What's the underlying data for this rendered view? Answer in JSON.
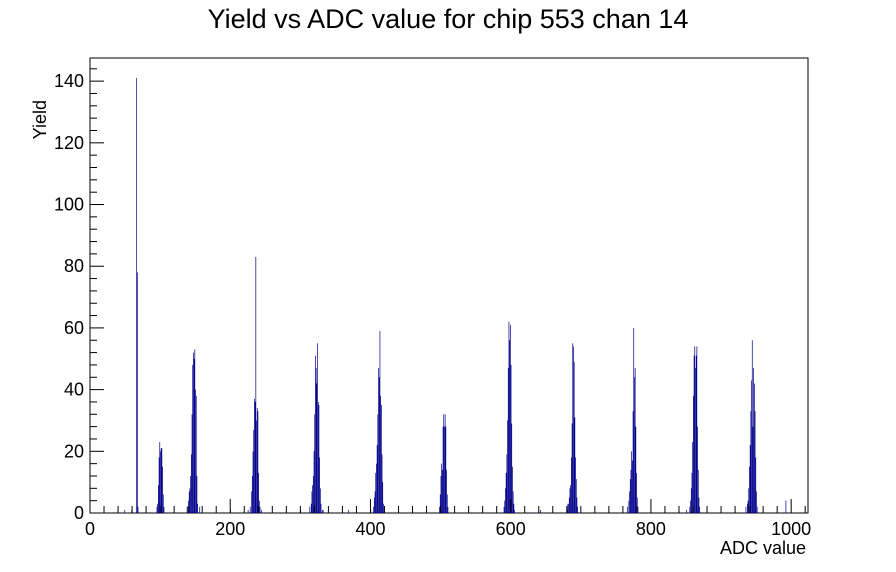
{
  "chart_data": {
    "type": "histogram",
    "title": "Yield vs ADC value for chip 553 chan 14",
    "xlabel": "ADC value",
    "ylabel": "Yield",
    "xlim": [
      0,
      1024
    ],
    "ylim": [
      0,
      147.5
    ],
    "x_ticks": [
      0,
      200,
      400,
      600,
      800,
      1000
    ],
    "y_ticks": [
      0,
      20,
      40,
      60,
      80,
      100,
      120,
      140
    ],
    "grid": false,
    "legend": "none",
    "line_color": "#00008b",
    "bin_width": 1,
    "bins": [
      [
        49,
        1
      ],
      [
        59,
        1
      ],
      [
        66,
        141
      ],
      [
        67,
        78
      ],
      [
        68,
        2
      ],
      [
        95,
        2
      ],
      [
        96,
        3
      ],
      [
        97,
        9
      ],
      [
        98,
        18
      ],
      [
        99,
        23
      ],
      [
        100,
        20
      ],
      [
        101,
        21
      ],
      [
        102,
        21
      ],
      [
        103,
        15
      ],
      [
        104,
        6
      ],
      [
        105,
        2
      ],
      [
        138,
        2
      ],
      [
        140,
        4
      ],
      [
        141,
        7
      ],
      [
        142,
        8
      ],
      [
        143,
        12
      ],
      [
        144,
        19
      ],
      [
        145,
        32
      ],
      [
        146,
        48
      ],
      [
        147,
        52
      ],
      [
        148,
        50
      ],
      [
        149,
        53
      ],
      [
        150,
        40
      ],
      [
        151,
        38
      ],
      [
        152,
        12
      ],
      [
        153,
        3
      ],
      [
        156,
        2
      ],
      [
        200,
        1
      ],
      [
        225,
        1
      ],
      [
        228,
        2
      ],
      [
        230,
        7
      ],
      [
        231,
        12
      ],
      [
        232,
        20
      ],
      [
        233,
        27
      ],
      [
        234,
        37
      ],
      [
        235,
        36
      ],
      [
        236,
        83
      ],
      [
        237,
        30
      ],
      [
        238,
        34
      ],
      [
        239,
        33
      ],
      [
        240,
        13
      ],
      [
        241,
        4
      ],
      [
        242,
        2
      ],
      [
        244,
        1
      ],
      [
        300,
        1
      ],
      [
        313,
        2
      ],
      [
        315,
        3
      ],
      [
        316,
        7
      ],
      [
        317,
        9
      ],
      [
        318,
        12
      ],
      [
        319,
        20
      ],
      [
        320,
        32
      ],
      [
        321,
        51
      ],
      [
        322,
        47
      ],
      [
        323,
        42
      ],
      [
        324,
        55
      ],
      [
        325,
        36
      ],
      [
        326,
        35
      ],
      [
        327,
        18
      ],
      [
        328,
        8
      ],
      [
        329,
        3
      ],
      [
        331,
        1
      ],
      [
        332,
        1
      ],
      [
        368,
        1
      ],
      [
        400,
        1
      ],
      [
        404,
        2
      ],
      [
        405,
        5
      ],
      [
        406,
        7
      ],
      [
        407,
        13
      ],
      [
        408,
        16
      ],
      [
        409,
        22
      ],
      [
        410,
        32
      ],
      [
        411,
        47
      ],
      [
        412,
        44
      ],
      [
        413,
        59
      ],
      [
        414,
        38
      ],
      [
        415,
        35
      ],
      [
        416,
        19
      ],
      [
        417,
        10
      ],
      [
        418,
        3
      ],
      [
        419,
        2
      ],
      [
        498,
        2
      ],
      [
        499,
        6
      ],
      [
        500,
        12
      ],
      [
        501,
        16
      ],
      [
        502,
        14
      ],
      [
        503,
        28
      ],
      [
        504,
        32
      ],
      [
        505,
        28
      ],
      [
        506,
        32
      ],
      [
        507,
        28
      ],
      [
        508,
        14
      ],
      [
        509,
        6
      ],
      [
        510,
        2
      ],
      [
        590,
        2
      ],
      [
        591,
        4
      ],
      [
        592,
        8
      ],
      [
        593,
        13
      ],
      [
        594,
        19
      ],
      [
        595,
        30
      ],
      [
        596,
        47
      ],
      [
        597,
        62
      ],
      [
        598,
        56
      ],
      [
        599,
        61
      ],
      [
        600,
        48
      ],
      [
        601,
        29
      ],
      [
        602,
        15
      ],
      [
        603,
        7
      ],
      [
        604,
        3
      ],
      [
        605,
        1
      ],
      [
        642,
        1
      ],
      [
        680,
        1
      ],
      [
        681,
        3
      ],
      [
        682,
        3
      ],
      [
        683,
        5
      ],
      [
        684,
        8
      ],
      [
        685,
        9
      ],
      [
        686,
        18
      ],
      [
        687,
        29
      ],
      [
        688,
        55
      ],
      [
        689,
        54
      ],
      [
        690,
        49
      ],
      [
        691,
        31
      ],
      [
        692,
        18
      ],
      [
        693,
        11
      ],
      [
        694,
        5
      ],
      [
        695,
        2
      ],
      [
        766,
        2
      ],
      [
        768,
        4
      ],
      [
        769,
        7
      ],
      [
        770,
        11
      ],
      [
        771,
        14
      ],
      [
        772,
        20
      ],
      [
        773,
        17
      ],
      [
        774,
        33
      ],
      [
        775,
        60
      ],
      [
        776,
        44
      ],
      [
        777,
        47
      ],
      [
        778,
        28
      ],
      [
        779,
        13
      ],
      [
        780,
        5
      ],
      [
        781,
        2
      ],
      [
        850,
        1
      ],
      [
        855,
        2
      ],
      [
        856,
        4
      ],
      [
        857,
        8
      ],
      [
        858,
        13
      ],
      [
        859,
        23
      ],
      [
        860,
        38
      ],
      [
        861,
        51
      ],
      [
        862,
        54
      ],
      [
        863,
        47
      ],
      [
        864,
        51
      ],
      [
        865,
        54
      ],
      [
        866,
        28
      ],
      [
        867,
        14
      ],
      [
        868,
        5
      ],
      [
        869,
        2
      ],
      [
        935,
        2
      ],
      [
        937,
        3
      ],
      [
        938,
        4
      ],
      [
        939,
        8
      ],
      [
        940,
        15
      ],
      [
        941,
        22
      ],
      [
        942,
        33
      ],
      [
        943,
        43
      ],
      [
        944,
        56
      ],
      [
        945,
        28
      ],
      [
        946,
        47
      ],
      [
        947,
        42
      ],
      [
        948,
        33
      ],
      [
        949,
        18
      ],
      [
        950,
        7
      ],
      [
        951,
        2
      ],
      [
        992,
        4
      ]
    ]
  }
}
